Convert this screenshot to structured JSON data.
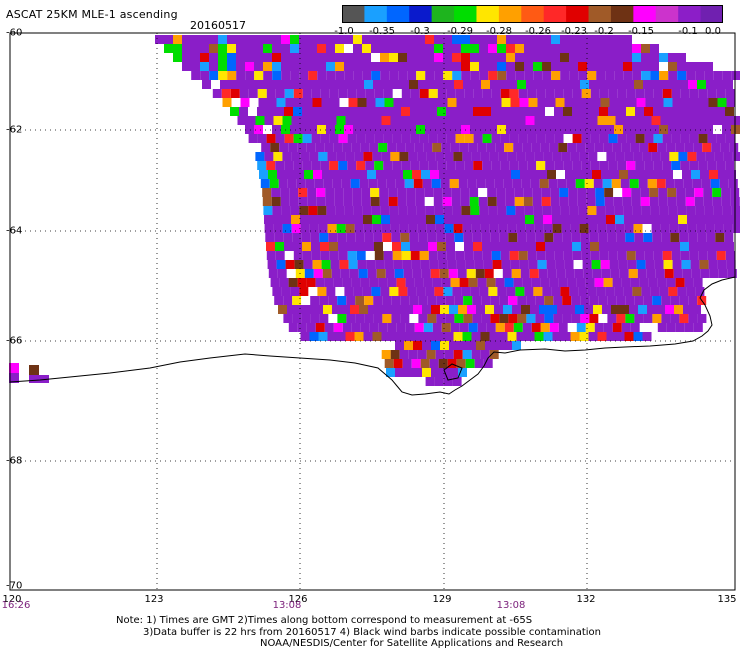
{
  "title": "ASCAT 25KM MLE-1 ascending",
  "date": "20160517",
  "colorbar": {
    "colors": [
      "#555555",
      "#1aa0ff",
      "#0066ff",
      "#0a1acc",
      "#1eb41e",
      "#00dd00",
      "#ffe600",
      "#ffa000",
      "#ff5a14",
      "#ff2828",
      "#e00000",
      "#a05a28",
      "#6e3214",
      "#ff00ff",
      "#cc33cc",
      "#8c1ec8",
      "#7020b0"
    ],
    "labels": [
      "-1.0",
      "-0.35",
      "-0.3",
      "-0.29",
      "-0.28",
      "-0.26",
      "-0.23",
      "-0.2",
      "-0.15",
      "-0.1",
      "0.0"
    ]
  },
  "lat_labels": [
    "-60",
    "-62",
    "-64",
    "-66",
    "-68",
    "-70"
  ],
  "lon_labels": [
    "120",
    "123",
    "126",
    "129",
    "132",
    "135"
  ],
  "time_labels": [
    "16:26",
    "13:08",
    "13:08"
  ],
  "notes": {
    "line1": "Note: 1) Times are GMT 2)Times along bottom correspond to measurement at -65S",
    "line2": "3)Data buffer is 22 hrs from 20160517 4) Black wind barbs indicate possible contamination",
    "line3": "NOAA/NESDIS/Center for Satellite Applications and Research"
  },
  "palette": {
    "dominant": "#8a1ec8",
    "scatter": [
      "#ff00ff",
      "#a05a28",
      "#ff2828",
      "#e00000",
      "#ffa000",
      "#ffe600",
      "#0066ff",
      "#1aa0ff",
      "#00dd00",
      "#6e3214",
      "#ffffff"
    ]
  }
}
